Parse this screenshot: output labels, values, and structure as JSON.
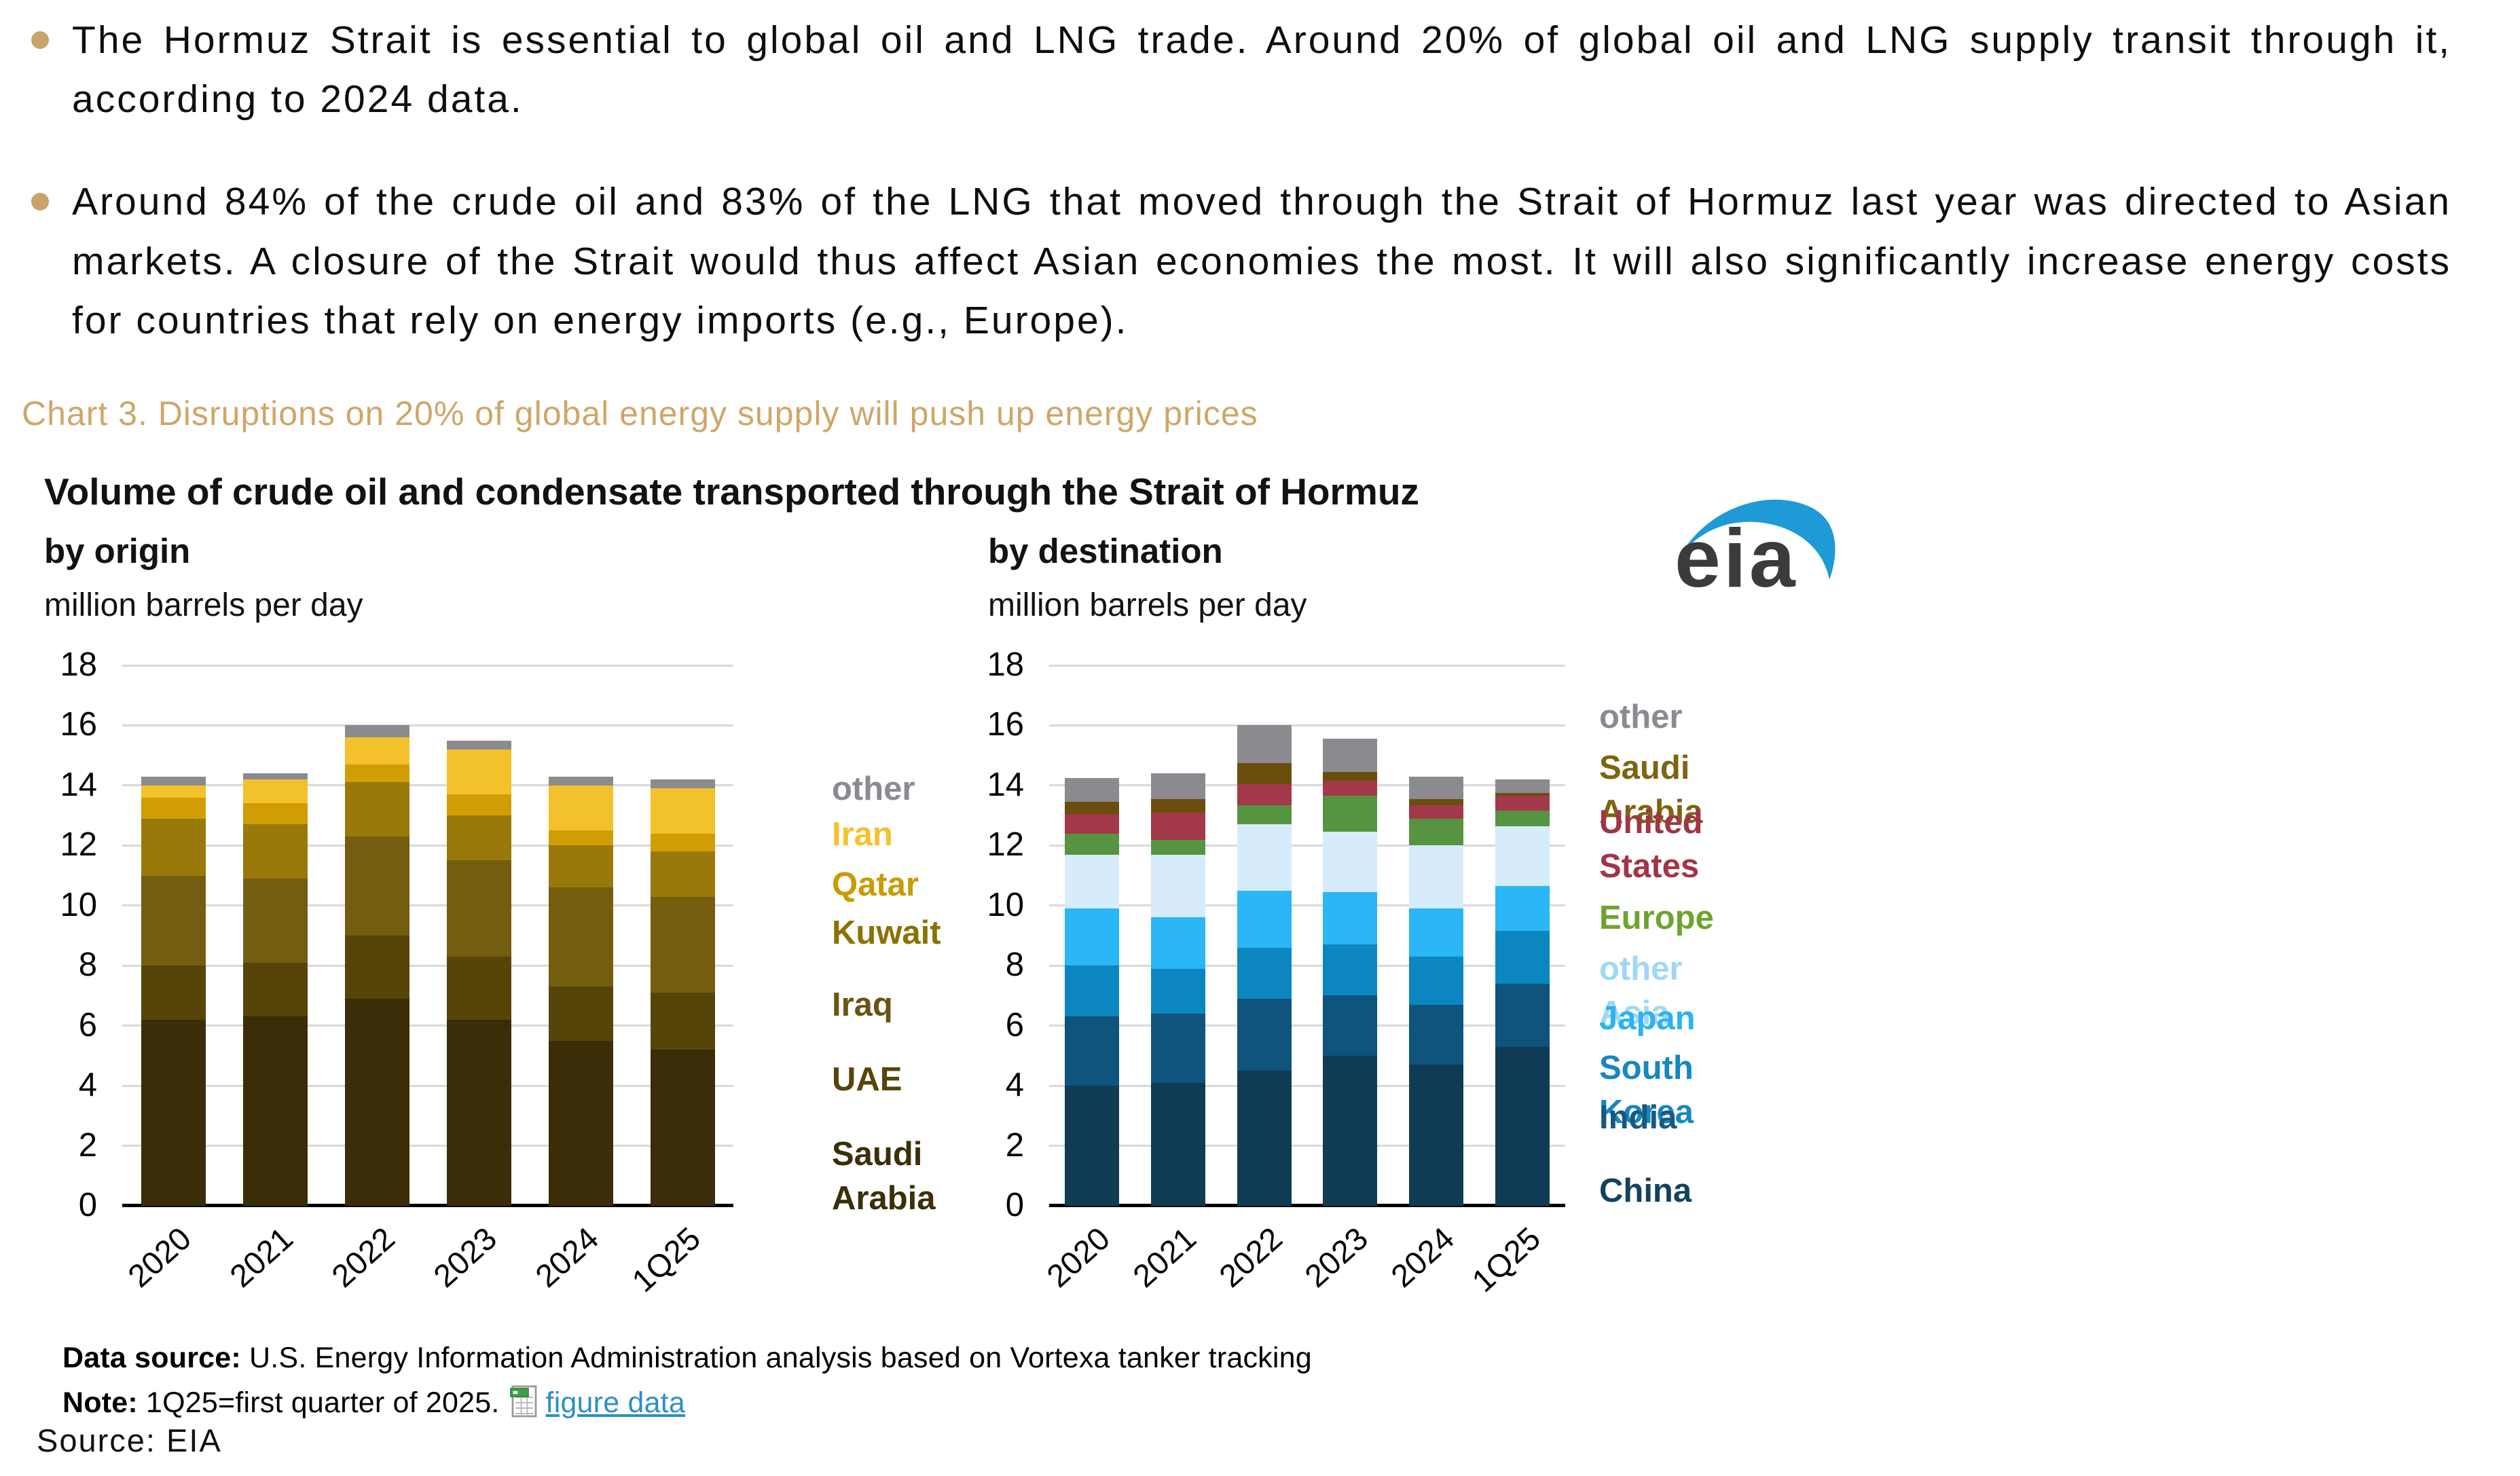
{
  "page": {
    "bullets": [
      "The Hormuz Strait is essential to global oil and LNG trade. Around 20% of global oil and LNG supply transit through it, according to 2024 data.",
      "Around 84% of the crude oil and 83% of the LNG that moved through the Strait of Hormuz last year was directed to Asian markets. A closure of the Strait would thus affect Asian economies the most. It will also significantly increase energy costs for countries that rely on energy imports (e.g., Europe)."
    ],
    "chart3_heading": "Chart 3. Disruptions on 20% of global energy supply will push up energy prices",
    "source_line": "Source: EIA",
    "accent_gold": "#CEA768"
  },
  "figure": {
    "title": "Volume of crude oil and condensate transported through the Strait of Hormuz",
    "logo_text": "eia",
    "logo_swoosh_color": "#1E9AD6",
    "left": {
      "subtitle": "by origin",
      "unit": "million barrels per day"
    },
    "right": {
      "subtitle": "by destination",
      "unit": "million barrels per day"
    },
    "notes": {
      "datasource_label": "Data source:",
      "datasource_text": " U.S. Energy Information Administration analysis based on Vortexa tanker tracking",
      "note_label": "Note:",
      "note_text": " 1Q25=first quarter of 2025.",
      "figure_data_link": "figure data"
    }
  },
  "chart_data": [
    {
      "type": "bar",
      "stacked": true,
      "title": "by origin",
      "ylabel": "million barrels per day",
      "categories": [
        "2020",
        "2021",
        "2022",
        "2023",
        "2024",
        "1Q25"
      ],
      "ylim": [
        0,
        18
      ],
      "yticks": [
        0,
        2,
        4,
        6,
        8,
        10,
        12,
        14,
        16,
        18
      ],
      "grid": true,
      "legend_position": "right",
      "series": [
        {
          "name": "Saudi Arabia",
          "color": "#3A2D08",
          "values": [
            6.2,
            6.3,
            6.9,
            6.2,
            5.5,
            5.2
          ]
        },
        {
          "name": "UAE",
          "color": "#574409",
          "values": [
            1.8,
            1.8,
            2.1,
            2.1,
            1.8,
            1.9
          ]
        },
        {
          "name": "Iraq",
          "color": "#755D10",
          "values": [
            3.0,
            2.8,
            3.3,
            3.2,
            3.3,
            3.2
          ]
        },
        {
          "name": "Kuwait",
          "color": "#99790A",
          "values": [
            1.9,
            1.8,
            1.8,
            1.5,
            1.4,
            1.5
          ]
        },
        {
          "name": "Qatar",
          "color": "#D09E04",
          "values": [
            0.7,
            0.7,
            0.6,
            0.7,
            0.5,
            0.6
          ]
        },
        {
          "name": "Iran",
          "color": "#F3C12B",
          "values": [
            0.4,
            0.8,
            0.9,
            1.5,
            1.5,
            1.5
          ]
        },
        {
          "name": "other",
          "color": "#8A8A8F",
          "values": [
            0.3,
            0.2,
            0.4,
            0.3,
            0.3,
            0.3
          ]
        }
      ],
      "legend": [
        {
          "label": "other",
          "color": "#8A8A93"
        },
        {
          "label": "Iran",
          "color": "#F5C12C"
        },
        {
          "label": "Qatar",
          "color": "#C89B03"
        },
        {
          "label": "Kuwait",
          "color": "#8D7103"
        },
        {
          "label": "Iraq",
          "color": "#6A5412"
        },
        {
          "label": "UAE",
          "color": "#574409"
        },
        {
          "label": "Saudi\nArabia",
          "color": "#3B2E08"
        }
      ]
    },
    {
      "type": "bar",
      "stacked": true,
      "title": "by destination",
      "ylabel": "million barrels per day",
      "categories": [
        "2020",
        "2021",
        "2022",
        "2023",
        "2024",
        "1Q25"
      ],
      "ylim": [
        0,
        18
      ],
      "yticks": [
        0,
        2,
        4,
        6,
        8,
        10,
        12,
        14,
        16,
        18
      ],
      "grid": true,
      "legend_position": "right",
      "series": [
        {
          "name": "China",
          "color": "#103B54",
          "values": [
            4.0,
            4.1,
            4.5,
            5.0,
            4.7,
            5.3
          ]
        },
        {
          "name": "India",
          "color": "#0E547C",
          "values": [
            2.3,
            2.3,
            2.4,
            2.0,
            2.0,
            2.1
          ]
        },
        {
          "name": "South Korea",
          "color": "#0C86C1",
          "values": [
            1.7,
            1.5,
            1.7,
            1.7,
            1.6,
            1.75
          ]
        },
        {
          "name": "Japan",
          "color": "#2AB6F7",
          "values": [
            1.9,
            1.7,
            1.9,
            1.75,
            1.6,
            1.5
          ]
        },
        {
          "name": "other Asia",
          "color": "#D6ECFA",
          "values": [
            1.8,
            2.1,
            2.2,
            2.0,
            2.1,
            2.0
          ]
        },
        {
          "name": "Europe",
          "color": "#579441",
          "values": [
            0.7,
            0.5,
            0.65,
            1.2,
            0.9,
            0.5
          ]
        },
        {
          "name": "United States",
          "color": "#A3384A",
          "values": [
            0.65,
            0.9,
            0.7,
            0.5,
            0.45,
            0.5
          ]
        },
        {
          "name": "Saudi Arabia",
          "color": "#6B4E0E",
          "values": [
            0.4,
            0.45,
            0.7,
            0.3,
            0.2,
            0.1
          ]
        },
        {
          "name": "other",
          "color": "#8A8A8F",
          "values": [
            0.8,
            0.85,
            1.25,
            1.1,
            0.75,
            0.45
          ]
        }
      ],
      "legend": [
        {
          "label": "other",
          "color": "#8A8A93"
        },
        {
          "label": "Saudi Arabia",
          "color": "#7D650E"
        },
        {
          "label": "United\nStates",
          "color": "#A03547"
        },
        {
          "label": "Europe",
          "color": "#6FA32F"
        },
        {
          "label": "other Asia",
          "color": "#9FD7F7"
        },
        {
          "label": "Japan",
          "color": "#2BB3F2"
        },
        {
          "label": "South Korea",
          "color": "#1787C1"
        },
        {
          "label": "India",
          "color": "#175A80"
        },
        {
          "label": "China",
          "color": "#13425E"
        }
      ]
    }
  ]
}
